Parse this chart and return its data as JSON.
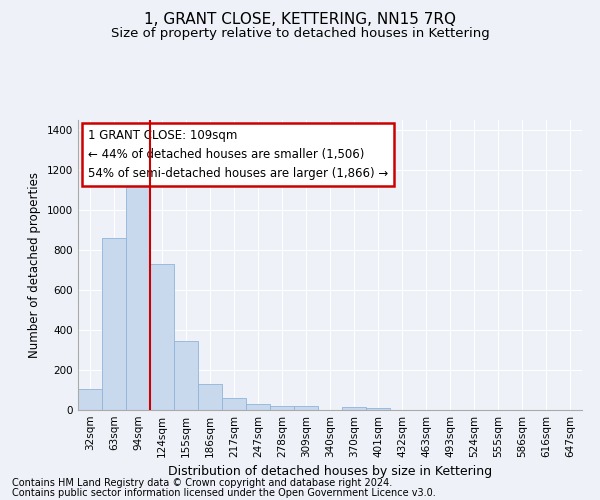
{
  "title": "1, GRANT CLOSE, KETTERING, NN15 7RQ",
  "subtitle": "Size of property relative to detached houses in Kettering",
  "xlabel": "Distribution of detached houses by size in Kettering",
  "ylabel": "Number of detached properties",
  "bar_labels": [
    "32sqm",
    "63sqm",
    "94sqm",
    "124sqm",
    "155sqm",
    "186sqm",
    "217sqm",
    "247sqm",
    "278sqm",
    "309sqm",
    "340sqm",
    "370sqm",
    "401sqm",
    "432sqm",
    "463sqm",
    "493sqm",
    "524sqm",
    "555sqm",
    "586sqm",
    "616sqm",
    "647sqm"
  ],
  "bar_values": [
    105,
    860,
    1150,
    730,
    345,
    130,
    60,
    32,
    20,
    20,
    0,
    15,
    10,
    0,
    0,
    0,
    0,
    0,
    0,
    0,
    0
  ],
  "bar_color": "#c8d9ee",
  "bar_edge_color": "#8fb4d9",
  "annotation_title": "1 GRANT CLOSE: 109sqm",
  "annotation_line1": "← 44% of detached houses are smaller (1,506)",
  "annotation_line2": "54% of semi-detached houses are larger (1,866) →",
  "annotation_box_color": "#ffffff",
  "annotation_box_edge": "#cc0000",
  "vline_color": "#cc0000",
  "ylim": [
    0,
    1450
  ],
  "yticks": [
    0,
    200,
    400,
    600,
    800,
    1000,
    1200,
    1400
  ],
  "footer_line1": "Contains HM Land Registry data © Crown copyright and database right 2024.",
  "footer_line2": "Contains public sector information licensed under the Open Government Licence v3.0.",
  "background_color": "#eef2f8",
  "plot_bg_color": "#eef2f8",
  "title_fontsize": 11,
  "subtitle_fontsize": 9.5,
  "ylabel_fontsize": 8.5,
  "xlabel_fontsize": 9,
  "tick_fontsize": 7.5,
  "annotation_fontsize": 8.5,
  "footer_fontsize": 7
}
